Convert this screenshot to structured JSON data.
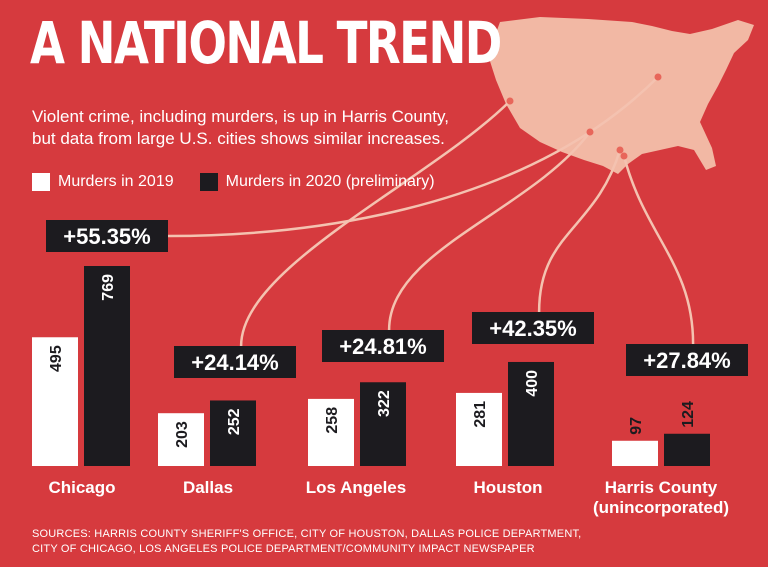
{
  "title": "A NATIONAL TREND",
  "subtitle_lines": [
    "Violent crime, including murders, is up in Harris County,",
    "but data from large U.S. cities shows similar increases."
  ],
  "legend": [
    {
      "label": "Murders in 2019",
      "color": "#ffffff"
    },
    {
      "label": "Murders in 2020 (preliminary)",
      "color": "#1c1b1f"
    }
  ],
  "sources_lines": [
    "SOURCES: HARRIS COUNTY SHERIFF'S OFFICE, CITY OF HOUSTON, DALLAS POLICE DEPARTMENT,",
    "CITY OF CHICAGO, LOS ANGELES POLICE DEPARTMENT/COMMUNITY IMPACT NEWSPAPER"
  ],
  "colors": {
    "background": "#d63a3e",
    "bar_2019": "#ffffff",
    "bar_2020": "#1c1b1f",
    "map": "#f2b8a4",
    "connector": "#f4c2b0"
  },
  "chart_data": {
    "type": "bar",
    "categories": [
      "Chicago",
      "Dallas",
      "Los Angeles",
      "Houston",
      "Harris County (unincorporated)"
    ],
    "category_lines": [
      [
        "Chicago"
      ],
      [
        "Dallas"
      ],
      [
        "Los Angeles"
      ],
      [
        "Houston"
      ],
      [
        "Harris County",
        "(unincorporated)"
      ]
    ],
    "series": [
      {
        "name": "Murders in 2019",
        "values": [
          495,
          203,
          258,
          281,
          97
        ]
      },
      {
        "name": "Murders in 2020 (preliminary)",
        "values": [
          769,
          252,
          322,
          400,
          124
        ]
      }
    ],
    "change_labels": [
      "+55.35%",
      "+24.14%",
      "+24.81%",
      "+42.35%",
      "+27.84%"
    ],
    "ylim": [
      0,
      769
    ],
    "grid": false,
    "legend_position": "top-left"
  }
}
